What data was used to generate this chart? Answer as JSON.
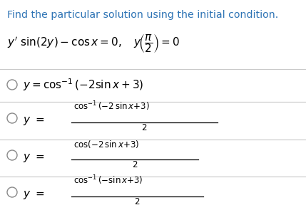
{
  "title": "Find the particular solution using the initial condition.",
  "title_color": "#2E74B5",
  "bg_color": "#ffffff",
  "text_color": "#000000",
  "line_color": "#c8c8c8",
  "circle_color": "#888888",
  "option1": "y = \\cos^{-1}(-2\\sin x + 3)",
  "opt2_num": "\\cos^{-1}(-2\\,\\sin x{+}3)",
  "opt3_num": "\\cos(-2\\,\\sin x{+}3)",
  "opt4_num": "\\cos^{-1}(-\\sin x{+}3)",
  "den": "2"
}
